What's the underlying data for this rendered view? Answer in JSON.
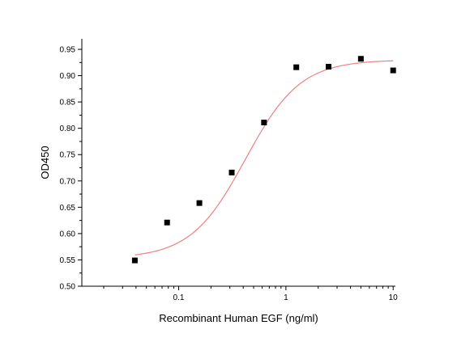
{
  "chart_data": {
    "type": "scatter",
    "title": "",
    "xlabel": "Recombinant Human EGF (ng/ml)",
    "ylabel": "OD450",
    "x_scale": "log",
    "xlim": [
      0.0125,
      10.5
    ],
    "ylim": [
      0.5,
      0.97
    ],
    "x_ticks": [
      {
        "value": 0.1,
        "label": "0.1"
      },
      {
        "value": 1,
        "label": "1"
      },
      {
        "value": 10,
        "label": "10"
      }
    ],
    "y_ticks": [
      {
        "value": 0.5,
        "label": "0.50"
      },
      {
        "value": 0.55,
        "label": "0.55"
      },
      {
        "value": 0.6,
        "label": "0.60"
      },
      {
        "value": 0.65,
        "label": "0.65"
      },
      {
        "value": 0.7,
        "label": "0.70"
      },
      {
        "value": 0.75,
        "label": "0.75"
      },
      {
        "value": 0.8,
        "label": "0.80"
      },
      {
        "value": 0.85,
        "label": "0.85"
      },
      {
        "value": 0.9,
        "label": "0.90"
      },
      {
        "value": 0.95,
        "label": "0.95"
      }
    ],
    "grid": false,
    "legend": "none",
    "series": [
      {
        "type": "scatter",
        "marker": "square",
        "color": "#000000",
        "x": [
          0.039,
          0.078,
          0.156,
          0.3125,
          0.625,
          1.25,
          2.5,
          5,
          10
        ],
        "y": [
          0.549,
          0.621,
          0.658,
          0.716,
          0.811,
          0.916,
          0.917,
          0.932,
          0.91
        ]
      },
      {
        "type": "line",
        "fit": "four-parameter logistic",
        "color": "#f08080",
        "bottom": 0.553,
        "top": 0.93,
        "ec50": 0.42,
        "hill": 1.7
      }
    ]
  }
}
